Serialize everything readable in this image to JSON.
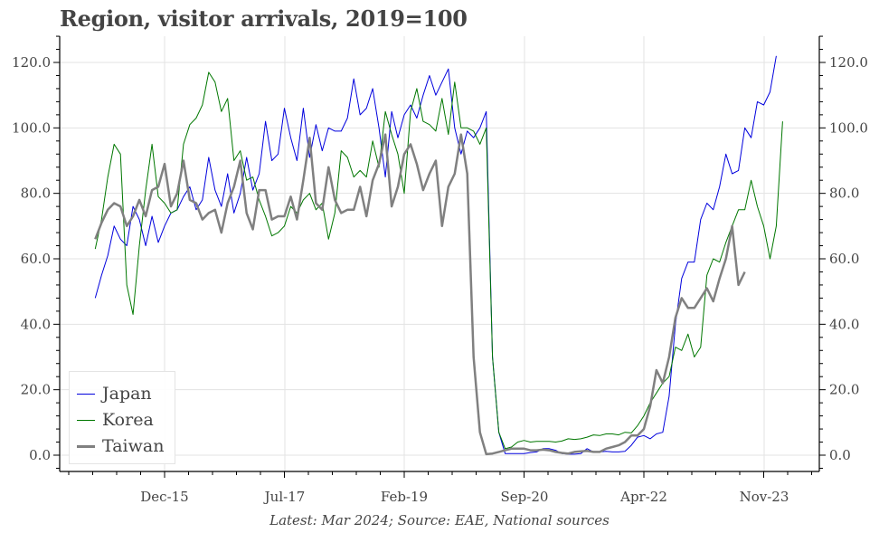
{
  "title": "Region, visitor arrivals, 2019=100",
  "footer": "Latest: Mar 2024; Source: EAE, National sources",
  "legend": [
    {
      "label": "Japan",
      "color": "#0000dd",
      "width": 1
    },
    {
      "label": "Korea",
      "color": "#007700",
      "width": 1
    },
    {
      "label": "Taiwan",
      "color": "#808080",
      "width": 2.5
    }
  ],
  "chart_data": {
    "type": "line",
    "title": "Region, visitor arrivals, 2019=100",
    "xlabel": "",
    "ylabel": "",
    "ylim": [
      -4,
      128
    ],
    "yticks": [
      0,
      20,
      40,
      60,
      80,
      100,
      120
    ],
    "ytick_labels": [
      "0.0",
      "20.0",
      "40.0",
      "60.0",
      "80.0",
      "100.0",
      "120.0"
    ],
    "xtick_labels": [
      "Dec-15",
      "Jul-17",
      "Feb-19",
      "Sep-20",
      "Apr-22",
      "Nov-23"
    ],
    "x_start": "Jan-15",
    "x_end": "Mar-24",
    "frequency": "monthly",
    "grid": true,
    "legend_position": "lower left",
    "dual_y_axis": true,
    "series": [
      {
        "name": "Japan",
        "values": [
          48,
          55,
          61,
          70,
          66,
          64,
          76,
          72,
          64,
          73,
          65,
          70,
          74,
          75,
          79,
          82,
          75,
          78,
          91,
          81,
          76,
          86,
          74,
          80,
          91,
          81,
          86,
          102,
          90,
          92,
          106,
          97,
          90,
          106,
          91,
          101,
          93,
          100,
          99,
          99,
          103,
          115,
          104,
          106,
          112,
          100,
          85,
          105,
          97,
          104,
          107,
          103,
          110,
          116,
          110,
          114,
          118,
          100,
          92,
          99,
          97,
          100,
          105,
          30,
          7,
          0.5,
          0.5,
          0.5,
          0.5,
          0.8,
          1,
          2,
          2,
          1.5,
          0.5,
          0.3,
          0.3,
          0.5,
          2,
          1,
          1,
          1.2,
          1,
          1,
          1.2,
          3,
          5.5,
          6,
          5,
          6.5,
          7,
          18,
          40,
          54,
          59,
          59,
          72,
          77,
          75,
          82,
          92,
          86,
          87,
          100,
          97,
          108,
          107,
          111,
          122
        ]
      },
      {
        "name": "Korea",
        "values": [
          63,
          72,
          85,
          95,
          92,
          52,
          43,
          64,
          81,
          95,
          79,
          77,
          74,
          75,
          95,
          101,
          103,
          107,
          117,
          114,
          105,
          109,
          90,
          93,
          84,
          85,
          78,
          73,
          67,
          68,
          70,
          76,
          74,
          78,
          80,
          75,
          77,
          66,
          74,
          93,
          91,
          85,
          87,
          85,
          96,
          88,
          105,
          98,
          92,
          80,
          105,
          112,
          102,
          101,
          99,
          109,
          98,
          114,
          100,
          100,
          99,
          95,
          100,
          30,
          7,
          2,
          2.5,
          4,
          4.5,
          4,
          4.2,
          4.2,
          4.2,
          4,
          4.3,
          5,
          4.8,
          5,
          5.5,
          6.2,
          6,
          6.5,
          6.5,
          6.2,
          7,
          6.8,
          9,
          12,
          16,
          19,
          22,
          24,
          33,
          32,
          37,
          30,
          33,
          55,
          60,
          59,
          65,
          70,
          75,
          75,
          84,
          76,
          70,
          60,
          70,
          102
        ]
      },
      {
        "name": "Taiwan",
        "values": [
          66,
          71,
          75,
          77,
          76,
          70,
          73,
          78,
          73,
          81,
          82,
          89,
          76,
          80,
          90,
          78,
          77,
          72,
          74,
          75,
          68,
          77,
          82,
          90,
          74,
          69,
          81,
          81,
          72,
          73,
          73,
          79,
          72,
          84,
          97,
          77,
          75,
          88,
          78,
          74,
          75,
          75,
          82,
          73,
          84,
          89,
          98,
          76,
          82,
          92,
          95,
          89,
          81,
          86,
          90,
          70,
          82,
          86,
          98,
          86,
          30,
          7,
          0.3,
          0.5,
          1,
          1.5,
          2,
          2,
          2,
          1.5,
          1.5,
          1.7,
          1.5,
          1,
          0.7,
          0.5,
          1,
          1.2,
          1.3,
          1,
          1,
          2,
          2.5,
          3,
          4,
          6,
          6,
          8,
          15,
          26,
          22,
          30,
          42,
          48,
          45,
          45,
          48,
          51,
          47,
          54,
          60,
          70,
          52,
          56
        ]
      }
    ]
  },
  "axes": {
    "left_ticks": [
      "0.0",
      "20.0",
      "40.0",
      "60.0",
      "80.0",
      "100.0",
      "120.0"
    ],
    "right_ticks": [
      "0.0",
      "20.0",
      "40.0",
      "60.0",
      "80.0",
      "100.0",
      "120.0"
    ],
    "x_ticks": [
      "Dec-15",
      "Jul-17",
      "Feb-19",
      "Sep-20",
      "Apr-22",
      "Nov-23"
    ]
  }
}
